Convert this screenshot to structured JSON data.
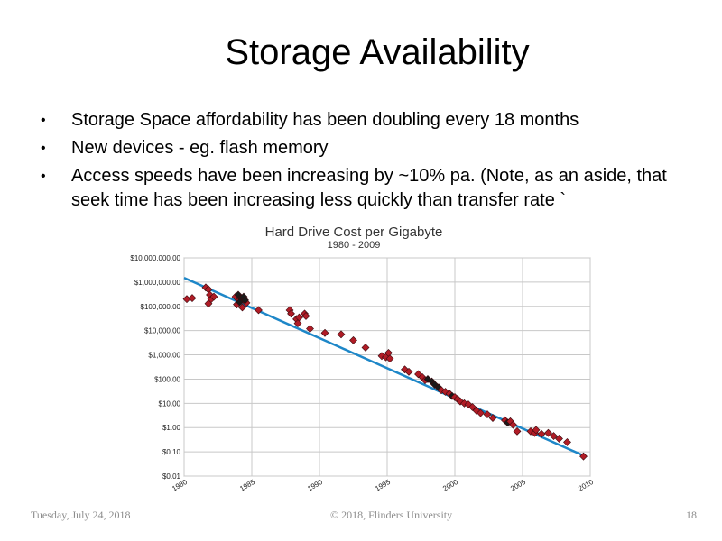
{
  "slide": {
    "title": "Storage Availability",
    "bullets": [
      "Storage Space affordability has been doubling every 18 months",
      "New devices - eg. flash memory",
      "Access speeds have been increasing by ~10% pa.  (Note, as an aside, that seek time has been increasing less quickly than transfer rate `"
    ],
    "bullet_glyph": "•"
  },
  "footer": {
    "date": "Tuesday, July 24, 2018",
    "copyright": "© 2018, Flinders University",
    "page": "18"
  },
  "colors": {
    "trend_line": "#1e87c8",
    "marker": "#b01c26",
    "marker_dark": "#1a1a1a",
    "grid": "#c8c8c8"
  },
  "chart_data": {
    "type": "scatter",
    "title": "Hard Drive Cost per Gigabyte",
    "subtitle": "1980 - 2009",
    "xlabel": "",
    "ylabel": "",
    "y_scale": "log10",
    "xlim": [
      1980,
      2010
    ],
    "ylim": [
      0.01,
      10000000
    ],
    "x_ticks": [
      1980,
      1985,
      1990,
      1995,
      2000,
      2005,
      2010
    ],
    "y_ticks": [
      {
        "value": 10000000,
        "label": "$10,000,000.00"
      },
      {
        "value": 1000000,
        "label": "$1,000,000.00"
      },
      {
        "value": 100000,
        "label": "$100,000.00"
      },
      {
        "value": 10000,
        "label": "$10,000.00"
      },
      {
        "value": 1000,
        "label": "$1,000.00"
      },
      {
        "value": 100,
        "label": "$100.00"
      },
      {
        "value": 10,
        "label": "$10.00"
      },
      {
        "value": 1,
        "label": "$1.00"
      },
      {
        "value": 0.1,
        "label": "$0.10"
      },
      {
        "value": 0.01,
        "label": "$0.01"
      }
    ],
    "grid": true,
    "legend": "none",
    "trend": [
      [
        1980,
        1500000
      ],
      [
        2009.5,
        0.07
      ]
    ],
    "points": [
      [
        1980.2,
        200000
      ],
      [
        1980.6,
        220000
      ],
      [
        1981.6,
        600000
      ],
      [
        1981.8,
        500000
      ],
      [
        1981.9,
        300000
      ],
      [
        1982.0,
        200000
      ],
      [
        1981.8,
        130000
      ],
      [
        1982.2,
        250000
      ],
      [
        1983.8,
        250000
      ],
      [
        1983.9,
        120000
      ],
      [
        1984.1,
        180000
      ],
      [
        1984.3,
        90000
      ],
      [
        1984.6,
        140000
      ],
      [
        1984.0,
        300000,
        "dark"
      ],
      [
        1984.2,
        220000,
        "dark"
      ],
      [
        1984.4,
        250000,
        "dark"
      ],
      [
        1984.1,
        150000,
        "dark"
      ],
      [
        1984.5,
        180000,
        "dark"
      ],
      [
        1985.5,
        70000
      ],
      [
        1987.8,
        70000
      ],
      [
        1987.9,
        50000
      ],
      [
        1988.3,
        30000
      ],
      [
        1988.5,
        35000
      ],
      [
        1988.4,
        20000
      ],
      [
        1988.9,
        50000
      ],
      [
        1989.0,
        40000
      ],
      [
        1989.3,
        12000
      ],
      [
        1990.4,
        8000
      ],
      [
        1991.6,
        7000
      ],
      [
        1992.5,
        4000
      ],
      [
        1993.4,
        2000
      ],
      [
        1994.6,
        900
      ],
      [
        1994.9,
        800
      ],
      [
        1995.1,
        1200
      ],
      [
        1995.2,
        700
      ],
      [
        1996.3,
        250
      ],
      [
        1996.6,
        200
      ],
      [
        1997.3,
        160
      ],
      [
        1997.6,
        120
      ],
      [
        1997.8,
        90
      ],
      [
        1998.0,
        100,
        "dark"
      ],
      [
        1998.3,
        80,
        "dark"
      ],
      [
        1998.5,
        60,
        "dark"
      ],
      [
        1998.8,
        45,
        "dark"
      ],
      [
        1999.0,
        35
      ],
      [
        1999.3,
        30
      ],
      [
        1999.6,
        25
      ],
      [
        1999.8,
        20,
        "dark"
      ],
      [
        2000.0,
        18
      ],
      [
        2000.2,
        15
      ],
      [
        2000.4,
        12
      ],
      [
        2000.7,
        10
      ],
      [
        2001.0,
        9
      ],
      [
        2001.3,
        7
      ],
      [
        2001.6,
        5
      ],
      [
        2001.9,
        4
      ],
      [
        2002.4,
        3.5
      ],
      [
        2002.8,
        2.5
      ],
      [
        2003.7,
        2
      ],
      [
        2003.9,
        1.6,
        "dark"
      ],
      [
        2004.1,
        1.8
      ],
      [
        2004.3,
        1.3
      ],
      [
        2004.6,
        0.7
      ],
      [
        2005.6,
        0.7
      ],
      [
        2005.9,
        0.6
      ],
      [
        2006.0,
        0.8
      ],
      [
        2006.4,
        0.55
      ],
      [
        2006.9,
        0.6
      ],
      [
        2007.3,
        0.45
      ],
      [
        2007.7,
        0.35
      ],
      [
        2008.3,
        0.25
      ],
      [
        2009.5,
        0.065
      ]
    ]
  }
}
